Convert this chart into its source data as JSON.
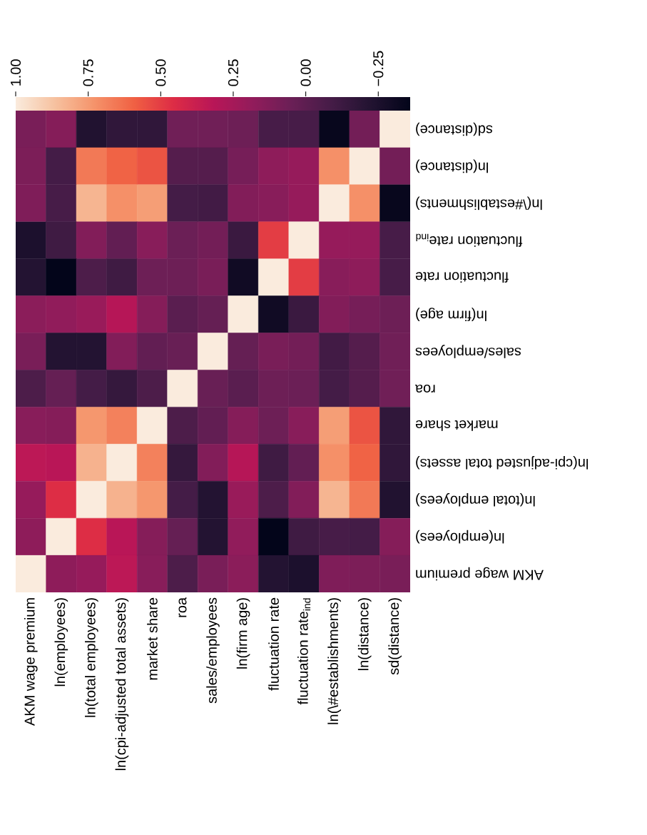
{
  "chart_data": {
    "type": "heatmap",
    "categories": [
      "AKM wage premium",
      "ln(employees)",
      "ln(total employees)",
      "ln(cpi-adjusted total assets)",
      "market share",
      "roa",
      "sales/employees",
      "ln(firm age)",
      "fluctuation rate",
      "fluctuation rate$_{ind}$",
      "ln(\\#establishments)",
      "ln(distance)",
      "sd(distance)"
    ],
    "y_categories": [
      "sd(distance)",
      "ln(distance)",
      "ln(\\#establishments)",
      "fluctuation rate$_{ind}$",
      "fluctuation rate",
      "ln(firm age)",
      "sales/employees",
      "roa",
      "market share",
      "ln(cpi-adjusted total assets)",
      "ln(total employees)",
      "ln(employees)",
      "AKM wage premium"
    ],
    "cells": [
      [
        0.1,
        0.14,
        -0.23,
        -0.17,
        -0.17,
        0.07,
        0.07,
        0.06,
        -0.08,
        -0.08,
        -0.34,
        0.08,
        1
      ],
      [
        0.11,
        -0.09,
        0.66,
        0.6,
        0.56,
        -0.03,
        -0.03,
        0.09,
        0.17,
        0.2,
        0.72,
        1,
        0.08
      ],
      [
        0.12,
        -0.08,
        0.83,
        0.72,
        0.76,
        -0.09,
        -0.1,
        0.13,
        0.15,
        0.2,
        1,
        0.72,
        -0.34
      ],
      [
        -0.25,
        -0.11,
        0.13,
        0.02,
        0.15,
        0.05,
        0.08,
        -0.13,
        0.5,
        1,
        0.2,
        0.2,
        -0.08
      ],
      [
        -0.22,
        -0.36,
        -0.06,
        -0.11,
        0.06,
        0.06,
        0.1,
        -0.3,
        1,
        0.5,
        0.15,
        0.17,
        -0.08
      ],
      [
        0.16,
        0.18,
        0.21,
        0.31,
        0.14,
        -0.01,
        0.03,
        1,
        -0.3,
        -0.13,
        0.13,
        0.09,
        0.06
      ],
      [
        0.1,
        -0.22,
        -0.22,
        0.13,
        0.02,
        0.04,
        1,
        0.03,
        0.1,
        0.08,
        -0.1,
        -0.03,
        0.07
      ],
      [
        -0.06,
        0.03,
        -0.09,
        -0.15,
        -0.06,
        1,
        0.04,
        -0.01,
        0.06,
        0.05,
        -0.09,
        -0.03,
        0.07
      ],
      [
        0.15,
        0.14,
        0.74,
        0.68,
        1,
        -0.06,
        0.02,
        0.14,
        0.06,
        0.15,
        0.76,
        0.56,
        -0.17
      ],
      [
        0.33,
        0.32,
        0.82,
        1,
        0.68,
        -0.15,
        0.13,
        0.31,
        -0.11,
        0.02,
        0.72,
        0.6,
        -0.17
      ],
      [
        0.2,
        0.46,
        1,
        0.82,
        0.74,
        -0.09,
        -0.22,
        0.21,
        -0.06,
        0.13,
        0.83,
        0.66,
        -0.23
      ],
      [
        0.17,
        1,
        0.46,
        0.32,
        0.14,
        0.03,
        -0.22,
        0.18,
        -0.36,
        -0.11,
        -0.08,
        -0.09,
        0.14
      ],
      [
        1,
        0.17,
        0.2,
        0.33,
        0.15,
        -0.06,
        0.1,
        0.16,
        -0.22,
        -0.25,
        0.12,
        0.11,
        0.1
      ]
    ],
    "clim": [
      -0.36,
      1
    ],
    "cticks": [
      {
        "value": 1,
        "label": "1.00"
      },
      {
        "value": 0.75,
        "label": "0.75"
      },
      {
        "value": 0.5,
        "label": "0.50"
      },
      {
        "value": 0.25,
        "label": "0.25"
      },
      {
        "value": 0,
        "label": "0.00"
      },
      {
        "value": -0.25,
        "label": "−0.25"
      }
    ]
  }
}
